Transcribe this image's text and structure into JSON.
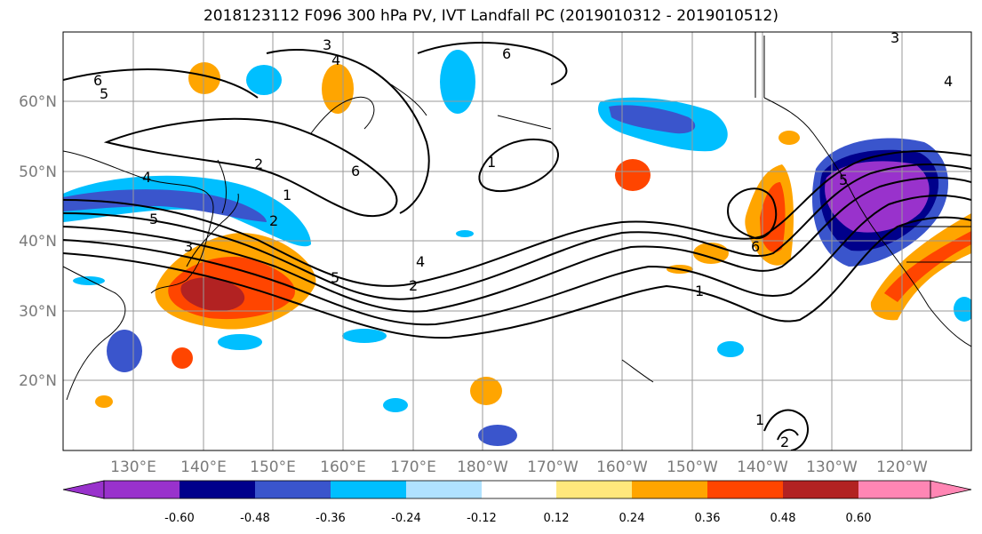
{
  "title": "2018123112 F096 300 hPa PV, IVT Landfall PC (2019010312 - 2019010512)",
  "lat_labels": [
    "60°N",
    "50°N",
    "40°N",
    "30°N",
    "20°N"
  ],
  "lon_labels": [
    "130°E",
    "140°E",
    "150°E",
    "160°E",
    "170°E",
    "180°W",
    "170°W",
    "160°W",
    "150°W",
    "140°W",
    "130°W",
    "120°W"
  ],
  "colorbar": {
    "colors": [
      "#9932cc",
      "#00008b",
      "#3a55cc",
      "#00bfff",
      "#b0e2ff",
      "#ffffff",
      "#ffe87c",
      "#ffa500",
      "#ff4500",
      "#b22222",
      "#ff86b4"
    ],
    "tick_labels": [
      "-0.60",
      "-0.48",
      "-0.36",
      "-0.24",
      "-0.12",
      "0.12",
      "0.24",
      "0.36",
      "0.48",
      "0.60"
    ]
  },
  "contour_labels": [
    "3",
    "4",
    "6",
    "5",
    "6",
    "2",
    "4",
    "1",
    "5",
    "2",
    "6",
    "1",
    "3",
    "4",
    "2",
    "1",
    "5",
    "6",
    "1",
    "2",
    "3",
    "4",
    "5"
  ]
}
